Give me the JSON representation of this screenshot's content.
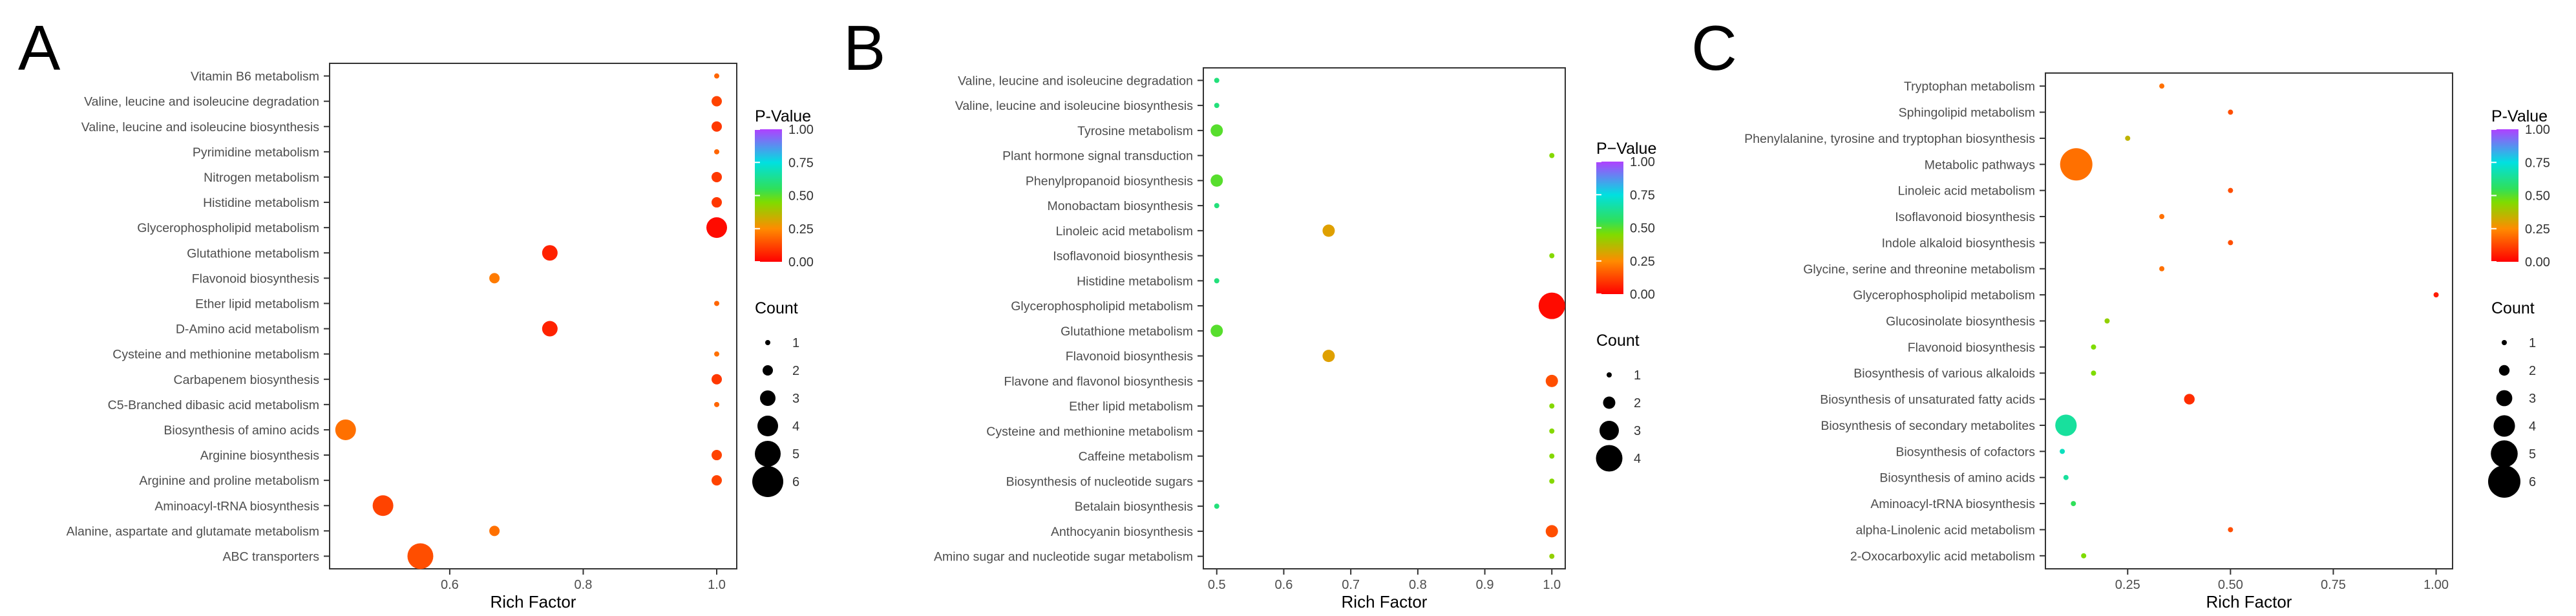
{
  "chart_data": [
    {
      "panel_label": "A",
      "type": "scatter",
      "xlabel": "Rich Factor",
      "xlim": [
        0.42,
        1.03
      ],
      "xticks": [
        0.6,
        0.8,
        1.0
      ],
      "xtick_labels": [
        "0.6",
        "0.8",
        "1.0"
      ],
      "categories": [
        "Vitamin B6 metabolism",
        "Valine, leucine and isoleucine degradation",
        "Valine, leucine and isoleucine biosynthesis",
        "Pyrimidine metabolism",
        "Nitrogen metabolism",
        "Histidine metabolism",
        "Glycerophospholipid metabolism",
        "Glutathione metabolism",
        "Flavonoid biosynthesis",
        "Ether lipid metabolism",
        "D-Amino acid metabolism",
        "Cysteine and methionine metabolism",
        "Carbapenem biosynthesis",
        "C5-Branched dibasic acid metabolism",
        "Biosynthesis of amino acids",
        "Arginine biosynthesis",
        "Arginine and proline metabolism",
        "Aminoacyl-tRNA biosynthesis",
        "Alanine, aspartate and glutamate metabolism",
        "ABC transporters"
      ],
      "x": [
        1.0,
        1.0,
        1.0,
        1.0,
        1.0,
        1.0,
        1.0,
        0.75,
        0.667,
        1.0,
        0.75,
        1.0,
        1.0,
        1.0,
        0.444,
        1.0,
        1.0,
        0.5,
        0.667,
        0.556
      ],
      "count": [
        1,
        2,
        2,
        1,
        2,
        2,
        4,
        3,
        2,
        1,
        3,
        1,
        2,
        1,
        4,
        2,
        2,
        4,
        2,
        5
      ],
      "pvalue": [
        0.18,
        0.12,
        0.1,
        0.18,
        0.1,
        0.1,
        0.02,
        0.06,
        0.22,
        0.18,
        0.06,
        0.2,
        0.1,
        0.18,
        0.2,
        0.12,
        0.12,
        0.12,
        0.2,
        0.14
      ],
      "legend": {
        "color_title": "P-Value",
        "color_ticks": [
          "1.00",
          "0.75",
          "0.50",
          "0.25",
          "0.00"
        ],
        "size_title": "Count",
        "size_values": [
          1,
          2,
          3,
          4,
          5,
          6
        ],
        "size_labels": [
          "1",
          "2",
          "3",
          "4",
          "5",
          "6"
        ]
      }
    },
    {
      "panel_label": "B",
      "type": "scatter",
      "xlabel": "Rich Factor",
      "xlim": [
        0.48,
        1.02
      ],
      "xticks": [
        0.5,
        0.6,
        0.7,
        0.8,
        0.9,
        1.0
      ],
      "xtick_labels": [
        "0.5",
        "0.6",
        "0.7",
        "0.8",
        "0.9",
        "1.0"
      ],
      "categories": [
        "Valine, leucine and isoleucine degradation",
        "Valine, leucine and isoleucine biosynthesis",
        "Tyrosine metabolism",
        "Plant hormone signal transduction",
        "Phenylpropanoid biosynthesis",
        "Monobactam biosynthesis",
        "Linoleic acid metabolism",
        "Isoflavonoid biosynthesis",
        "Histidine metabolism",
        "Glycerophospholipid metabolism",
        "Glutathione metabolism",
        "Flavonoid biosynthesis",
        "Flavone and flavonol biosynthesis",
        "Ether lipid metabolism",
        "Cysteine and methionine metabolism",
        "Caffeine metabolism",
        "Biosynthesis of nucleotide sugars",
        "Betalain biosynthesis",
        "Anthocyanin biosynthesis",
        "Amino sugar and nucleotide sugar metabolism"
      ],
      "x": [
        0.5,
        0.5,
        0.5,
        1.0,
        0.5,
        0.5,
        0.667,
        1.0,
        0.5,
        1.0,
        0.5,
        0.667,
        1.0,
        1.0,
        1.0,
        1.0,
        1.0,
        0.5,
        1.0,
        1.0
      ],
      "count": [
        1,
        1,
        2,
        1,
        2,
        1,
        2,
        1,
        1,
        4,
        2,
        2,
        2,
        1,
        1,
        1,
        1,
        1,
        2,
        1
      ],
      "pvalue": [
        0.6,
        0.6,
        0.5,
        0.44,
        0.5,
        0.6,
        0.3,
        0.44,
        0.6,
        0.02,
        0.5,
        0.3,
        0.14,
        0.44,
        0.44,
        0.44,
        0.44,
        0.6,
        0.14,
        0.42
      ],
      "legend": {
        "color_title": "P−Value",
        "color_ticks": [
          "1.00",
          "0.75",
          "0.50",
          "0.25",
          "0.00"
        ],
        "size_title": "Count",
        "size_values": [
          1,
          2,
          3,
          4
        ],
        "size_labels": [
          "1",
          "2",
          "3",
          "4"
        ]
      }
    },
    {
      "panel_label": "C",
      "type": "scatter",
      "xlabel": "Rich Factor",
      "xlim": [
        0.05,
        1.04
      ],
      "xticks": [
        0.25,
        0.5,
        0.75,
        1.0
      ],
      "xtick_labels": [
        "0.25",
        "0.50",
        "0.75",
        "1.00"
      ],
      "categories": [
        "Tryptophan metabolism",
        "Sphingolipid metabolism",
        "Phenylalanine, tyrosine and tryptophan biosynthesis",
        "Metabolic pathways",
        "Linoleic acid metabolism",
        "Isoflavonoid biosynthesis",
        "Indole alkaloid biosynthesis",
        "Glycine, serine and threonine metabolism",
        "Glycerophospholipid metabolism",
        "Glucosinolate biosynthesis",
        "Flavonoid biosynthesis",
        "Biosynthesis of various alkaloids",
        "Biosynthesis of unsaturated fatty acids",
        "Biosynthesis of secondary metabolites",
        "Biosynthesis of cofactors",
        "Biosynthesis of amino acids",
        "Aminoacyl-tRNA biosynthesis",
        "alpha-Linolenic acid metabolism",
        "2-Oxocarboxylic acid metabolism"
      ],
      "x": [
        0.333,
        0.5,
        0.25,
        0.125,
        0.5,
        0.333,
        0.5,
        0.333,
        1.0,
        0.2,
        0.167,
        0.167,
        0.4,
        0.1,
        0.091,
        0.1,
        0.118,
        0.5,
        0.143
      ],
      "count": [
        1,
        1,
        1,
        6,
        1,
        1,
        1,
        1,
        1,
        1,
        1,
        1,
        2,
        4,
        1,
        1,
        1,
        1,
        1
      ],
      "pvalue": [
        0.2,
        0.14,
        0.35,
        0.2,
        0.14,
        0.2,
        0.14,
        0.2,
        0.05,
        0.42,
        0.45,
        0.45,
        0.08,
        0.65,
        0.7,
        0.65,
        0.55,
        0.14,
        0.45
      ],
      "legend": {
        "color_title": "P-Value",
        "color_ticks": [
          "1.00",
          "0.75",
          "0.50",
          "0.25",
          "0.00"
        ],
        "size_title": "Count",
        "size_values": [
          1,
          2,
          3,
          4,
          5,
          6
        ],
        "size_labels": [
          "1",
          "2",
          "3",
          "4",
          "5",
          "6"
        ]
      }
    }
  ]
}
